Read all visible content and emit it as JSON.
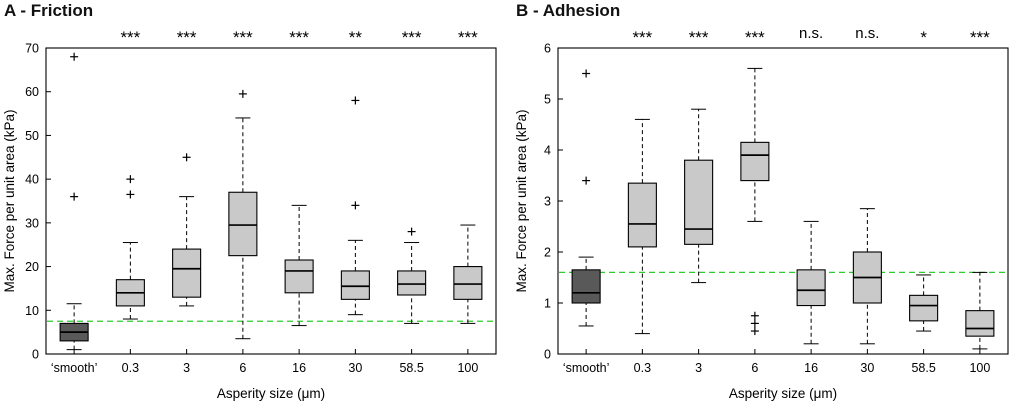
{
  "figure": {
    "background": "#ffffff",
    "box_outline_color": "#000000",
    "default_box_fill": "#c9c9c9",
    "smooth_box_fill": "#595959",
    "reference_line_color": "#2ecc2e"
  },
  "chart_data": [
    {
      "type": "box",
      "title": "A - Friction",
      "xlabel": "Asperity size (μm)",
      "ylabel": "Max. Force per unit area (kPa)",
      "ylim": [
        0,
        70
      ],
      "yticks": [
        0,
        10,
        20,
        30,
        40,
        50,
        60,
        70
      ],
      "grid": false,
      "reference_line": {
        "y": 7.5,
        "color": "#2ecc2e",
        "style": "dashed"
      },
      "categories": [
        "‘smooth’",
        "0.3",
        "3",
        "6",
        "16",
        "30",
        "58.5",
        "100"
      ],
      "significance": [
        "",
        "***",
        "***",
        "***",
        "***",
        "**",
        "***",
        "***"
      ],
      "box_fill": "#c9c9c9",
      "boxes": [
        {
          "whisker_low": 1,
          "q1": 3,
          "median": 5,
          "q3": 7,
          "whisker_high": 11.5,
          "outliers": [
            36,
            68
          ],
          "fill": "#595959"
        },
        {
          "whisker_low": 8,
          "q1": 11,
          "median": 14,
          "q3": 17,
          "whisker_high": 25.5,
          "outliers": [
            36.5,
            40
          ]
        },
        {
          "whisker_low": 11,
          "q1": 13,
          "median": 19.5,
          "q3": 24,
          "whisker_high": 36,
          "outliers": [
            45
          ]
        },
        {
          "whisker_low": 3.5,
          "q1": 22.5,
          "median": 29.5,
          "q3": 37,
          "whisker_high": 54,
          "outliers": [
            59.5
          ]
        },
        {
          "whisker_low": 6.5,
          "q1": 14,
          "median": 19,
          "q3": 21.5,
          "whisker_high": 34,
          "outliers": []
        },
        {
          "whisker_low": 9,
          "q1": 12.5,
          "median": 15.5,
          "q3": 19,
          "whisker_high": 26,
          "outliers": [
            34,
            58
          ]
        },
        {
          "whisker_low": 7,
          "q1": 13.5,
          "median": 16,
          "q3": 19,
          "whisker_high": 25.5,
          "outliers": [
            28
          ]
        },
        {
          "whisker_low": 7,
          "q1": 12.5,
          "median": 16,
          "q3": 20,
          "whisker_high": 29.5,
          "outliers": []
        }
      ]
    },
    {
      "type": "box",
      "title": "B - Adhesion",
      "xlabel": "Asperity size (μm)",
      "ylabel": "Max. Force per unit area (kPa)",
      "ylim": [
        0,
        6
      ],
      "yticks": [
        0,
        1,
        2,
        3,
        4,
        5,
        6
      ],
      "grid": false,
      "reference_line": {
        "y": 1.6,
        "color": "#2ecc2e",
        "style": "dashed"
      },
      "categories": [
        "‘smooth’",
        "0.3",
        "3",
        "6",
        "16",
        "30",
        "58.5",
        "100"
      ],
      "significance": [
        "",
        "***",
        "***",
        "***",
        "n.s.",
        "n.s.",
        "*",
        "***"
      ],
      "box_fill": "#c9c9c9",
      "boxes": [
        {
          "whisker_low": 0.55,
          "q1": 1.0,
          "median": 1.2,
          "q3": 1.65,
          "whisker_high": 1.9,
          "outliers": [
            3.4,
            5.5
          ],
          "fill": "#595959"
        },
        {
          "whisker_low": 0.4,
          "q1": 2.1,
          "median": 2.55,
          "q3": 3.35,
          "whisker_high": 4.6,
          "outliers": []
        },
        {
          "whisker_low": 1.4,
          "q1": 2.15,
          "median": 2.45,
          "q3": 3.8,
          "whisker_high": 4.8,
          "outliers": []
        },
        {
          "whisker_low": 2.6,
          "q1": 3.4,
          "median": 3.9,
          "q3": 4.15,
          "whisker_high": 5.6,
          "outliers": [
            0.45,
            0.6,
            0.75
          ]
        },
        {
          "whisker_low": 0.2,
          "q1": 0.95,
          "median": 1.25,
          "q3": 1.65,
          "whisker_high": 2.6,
          "outliers": []
        },
        {
          "whisker_low": 0.2,
          "q1": 1.0,
          "median": 1.5,
          "q3": 2.0,
          "whisker_high": 2.85,
          "outliers": []
        },
        {
          "whisker_low": 0.45,
          "q1": 0.65,
          "median": 0.95,
          "q3": 1.15,
          "whisker_high": 1.55,
          "outliers": []
        },
        {
          "whisker_low": 0.1,
          "q1": 0.35,
          "median": 0.5,
          "q3": 0.85,
          "whisker_high": 1.6,
          "outliers": []
        }
      ]
    }
  ]
}
